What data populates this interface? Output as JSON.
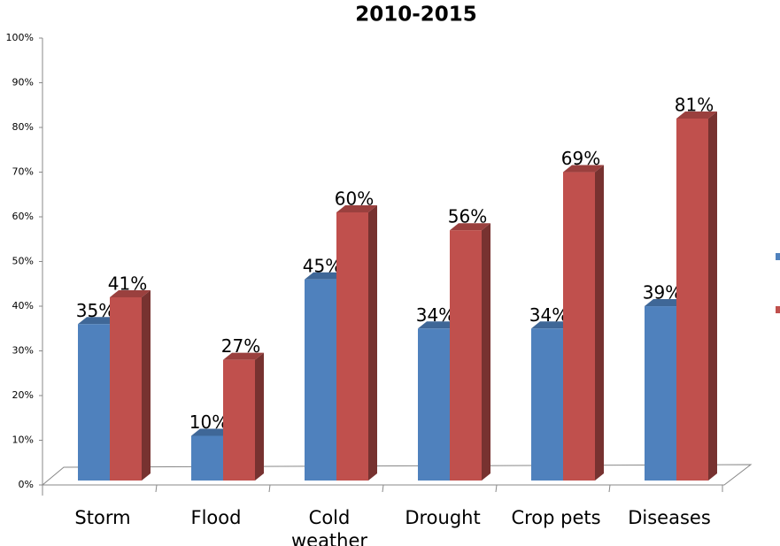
{
  "chart_data": {
    "type": "bar3d",
    "title": "2010-2015",
    "categories": [
      "Storm",
      "Flood",
      "Cold weather",
      "Drought",
      "Crop pets",
      "Diseases"
    ],
    "series": [
      {
        "color": "#4f81bd",
        "values": [
          35,
          10,
          45,
          34,
          34,
          39
        ],
        "value_labels": [
          "35%",
          "10%",
          "45%",
          "34%",
          "34%",
          "39%"
        ]
      },
      {
        "color": "#c0504d",
        "values": [
          41,
          27,
          60,
          56,
          69,
          81
        ],
        "value_labels": [
          "41%",
          "27%",
          "60%",
          "56%",
          "69%",
          "81%"
        ]
      }
    ],
    "ylim": [
      0,
      100
    ],
    "yticks": [
      {
        "value": 0,
        "label": "0%"
      },
      {
        "value": 10,
        "label": "10%"
      },
      {
        "value": 20,
        "label": "20%"
      },
      {
        "value": 30,
        "label": "30%"
      },
      {
        "value": 40,
        "label": "40%"
      },
      {
        "value": 50,
        "label": "50%"
      },
      {
        "value": 60,
        "label": "60%"
      },
      {
        "value": 70,
        "label": "70%"
      },
      {
        "value": 80,
        "label": "80%"
      },
      {
        "value": 90,
        "label": "90%"
      },
      {
        "value": 100,
        "label": "100%"
      }
    ]
  }
}
